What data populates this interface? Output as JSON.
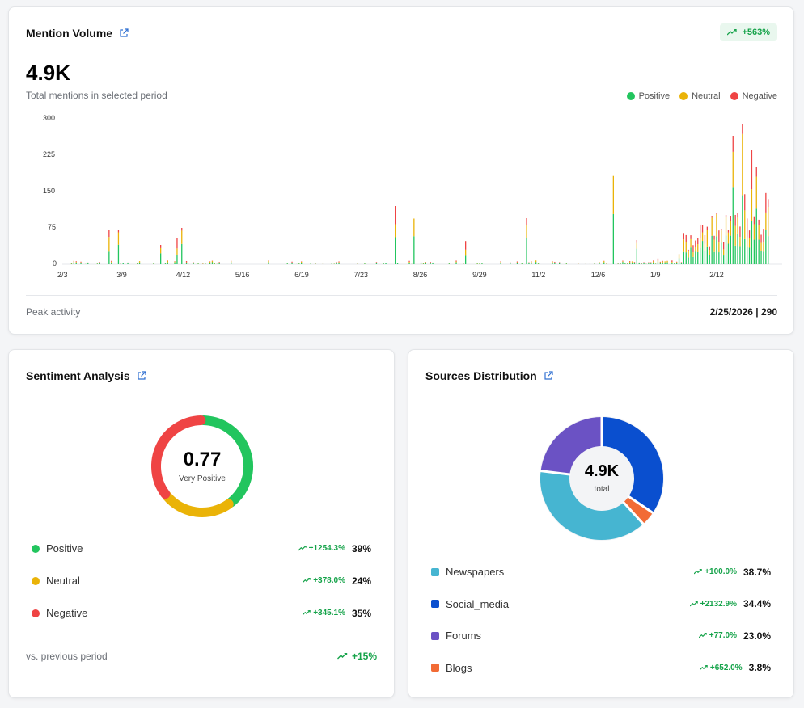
{
  "mention_volume": {
    "title": "Mention Volume",
    "badge": "+563%",
    "total": "4.9K",
    "total_label": "Total mentions in selected period",
    "legend": [
      "Positive",
      "Neutral",
      "Negative"
    ],
    "footer_label": "Peak activity",
    "footer_value": "2/25/2026 | 290"
  },
  "colors": {
    "positive": "#22c55e",
    "neutral": "#eab308",
    "negative": "#ef4444",
    "accent": "#2f6fd1",
    "green_text": "#16a34a"
  },
  "chart_data": {
    "type": "bar",
    "stacked": true,
    "yticks": [
      0,
      75,
      150,
      225,
      300
    ],
    "ylim": [
      0,
      300
    ],
    "xticks": [
      "2/3",
      "3/9",
      "4/12",
      "5/16",
      "6/19",
      "7/23",
      "8/26",
      "9/29",
      "11/2",
      "12/6",
      "1/9",
      "2/12"
    ],
    "series_names": [
      "Positive",
      "Neutral",
      "Negative"
    ]
  },
  "sentiment": {
    "title": "Sentiment Analysis",
    "score": "0.77",
    "score_label": "Very Positive",
    "items": [
      {
        "label": "Positive",
        "change": "+1254.3%",
        "pct": "39%",
        "color": "#22c55e"
      },
      {
        "label": "Neutral",
        "change": "+378.0%",
        "pct": "24%",
        "color": "#eab308"
      },
      {
        "label": "Negative",
        "change": "+345.1%",
        "pct": "35%",
        "color": "#ef4444"
      }
    ],
    "footer_label": "vs. previous period",
    "footer_value": "+15%"
  },
  "sources": {
    "title": "Sources Distribution",
    "total": "4.9K",
    "total_label": "total",
    "items": [
      {
        "label": "Newspapers",
        "change": "+100.0%",
        "pct": "38.7%",
        "color": "#46b5d1"
      },
      {
        "label": "Social_media",
        "change": "+2132.9%",
        "pct": "34.4%",
        "color": "#0a4fcf"
      },
      {
        "label": "Forums",
        "change": "+77.0%",
        "pct": "23.0%",
        "color": "#6b52c4"
      },
      {
        "label": "Blogs",
        "change": "+652.0%",
        "pct": "3.8%",
        "color": "#f26b35"
      }
    ]
  }
}
